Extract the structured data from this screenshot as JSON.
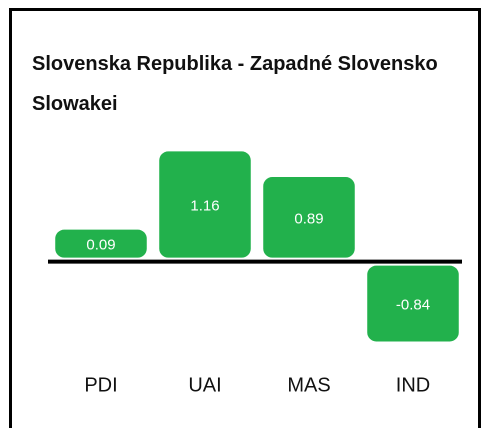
{
  "chart_data": {
    "type": "bar",
    "title": "Slovenska Republika - Zapadné Slovensko  Slowakei",
    "categories": [
      "PDI",
      "UAI",
      "MAS",
      "IND"
    ],
    "values": [
      0.09,
      1.16,
      0.89,
      -0.84
    ],
    "color": "#22b14c",
    "ylim": [
      -0.93,
      1.28
    ]
  }
}
